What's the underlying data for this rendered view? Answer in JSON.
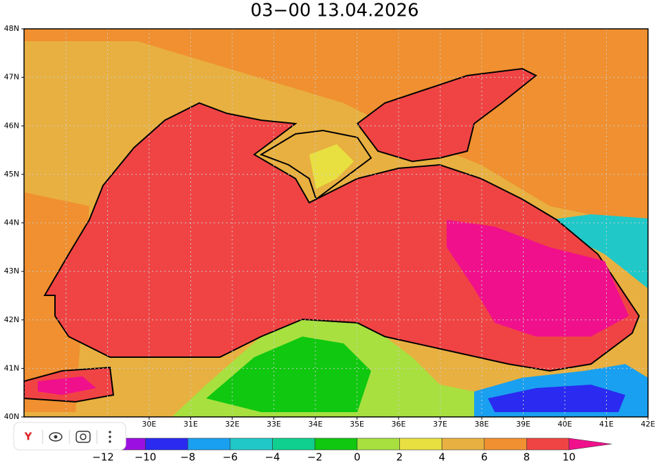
{
  "header": {
    "title": "03−00    13.04.2026"
  },
  "map": {
    "lat_labels": [
      "48N",
      "47N",
      "46N",
      "45N",
      "44N",
      "43N",
      "42N",
      "41N",
      "40N"
    ],
    "lon_labels": [
      "30E",
      "31E",
      "32E",
      "33E",
      "34E",
      "35E",
      "36E",
      "37E",
      "38E",
      "39E",
      "40E",
      "41E",
      "42E"
    ]
  },
  "colorbar": {
    "labels": [
      "−12",
      "−10",
      "−8",
      "−6",
      "−4",
      "−2",
      "0",
      "2",
      "4",
      "6",
      "8",
      "10"
    ],
    "colors": [
      "#9b10e0",
      "#2a2af0",
      "#1aa0f0",
      "#20c8c8",
      "#10d090",
      "#10c810",
      "#a8e040",
      "#e8e040",
      "#e8b040",
      "#f09030",
      "#f04444",
      "#f0108c"
    ]
  }
}
